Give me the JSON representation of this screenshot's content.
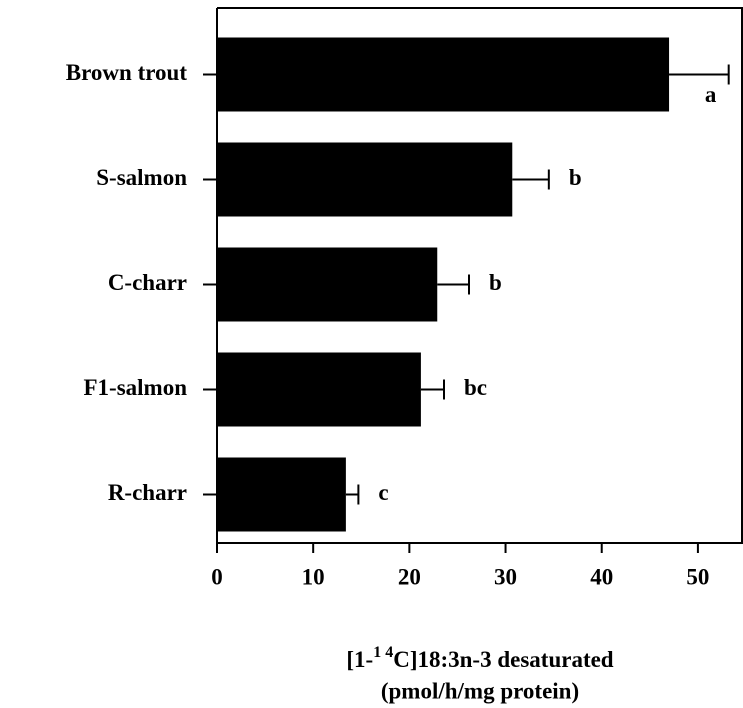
{
  "chart_data": {
    "type": "bar",
    "orientation": "horizontal",
    "categories": [
      "Brown trout",
      "S-salmon",
      "C-charr",
      "F1-salmon",
      "R-charr"
    ],
    "values": [
      47.0,
      30.7,
      22.9,
      21.2,
      13.4
    ],
    "errors": [
      6.2,
      3.8,
      3.3,
      2.4,
      1.3
    ],
    "letters": [
      "a",
      "b",
      "b",
      "bc",
      "c"
    ],
    "color": "#000000",
    "xlim": [
      0,
      55
    ],
    "xticks": [
      0,
      10,
      20,
      30,
      40,
      50
    ],
    "xlabel": {
      "before": "[1-",
      "sup": "1 4",
      "after": "C]18:3n-3 desaturated",
      "line2": "(pmol/h/mg protein)"
    }
  }
}
